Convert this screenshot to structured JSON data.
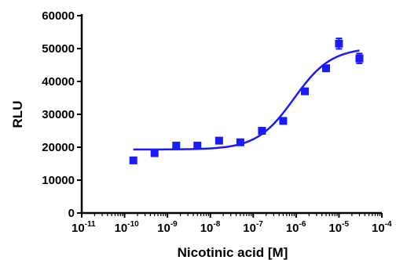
{
  "chart_data": {
    "type": "scatter",
    "title": "",
    "xlabel": "Nicotinic acid [M]",
    "ylabel": "RLU",
    "x_scale": "log",
    "xlim": [
      1e-11,
      0.0001
    ],
    "ylim": [
      0,
      60000
    ],
    "x_ticks": [
      {
        "base": "10",
        "exp": "-11"
      },
      {
        "base": "10",
        "exp": "-10"
      },
      {
        "base": "10",
        "exp": "-9"
      },
      {
        "base": "10",
        "exp": "-8"
      },
      {
        "base": "10",
        "exp": "-7"
      },
      {
        "base": "10",
        "exp": "-6"
      },
      {
        "base": "10",
        "exp": "-5"
      },
      {
        "base": "10",
        "exp": "-4"
      }
    ],
    "y_ticks": [
      "0",
      "10000",
      "20000",
      "30000",
      "40000",
      "50000",
      "60000"
    ],
    "grid": false,
    "legend": "none",
    "color": "#1a1aff",
    "series": [
      {
        "points": [
          {
            "x": 1.6e-10,
            "y": 16000,
            "err": 400
          },
          {
            "x": 5e-10,
            "y": 18200,
            "err": 400
          },
          {
            "x": 1.6e-09,
            "y": 20500,
            "err": 500
          },
          {
            "x": 5e-09,
            "y": 20500,
            "err": 400
          },
          {
            "x": 1.6e-08,
            "y": 22000,
            "err": 500
          },
          {
            "x": 5e-08,
            "y": 21500,
            "err": 400
          },
          {
            "x": 1.6e-07,
            "y": 25000,
            "err": 500
          },
          {
            "x": 5e-07,
            "y": 28000,
            "err": 600
          },
          {
            "x": 1.6e-06,
            "y": 37000,
            "err": 500
          },
          {
            "x": 5e-06,
            "y": 44000,
            "err": 600
          },
          {
            "x": 1e-05,
            "y": 51500,
            "err": 1600
          },
          {
            "x": 3e-05,
            "y": 47000,
            "err": 1500
          }
        ]
      }
    ],
    "fit": {
      "model": "sigmoidal dose-response",
      "bottom": 19300,
      "top": 50300,
      "log_ec50": -6.05,
      "hill": 1.0,
      "x_range": [
        1.6e-10,
        3e-05
      ]
    }
  }
}
